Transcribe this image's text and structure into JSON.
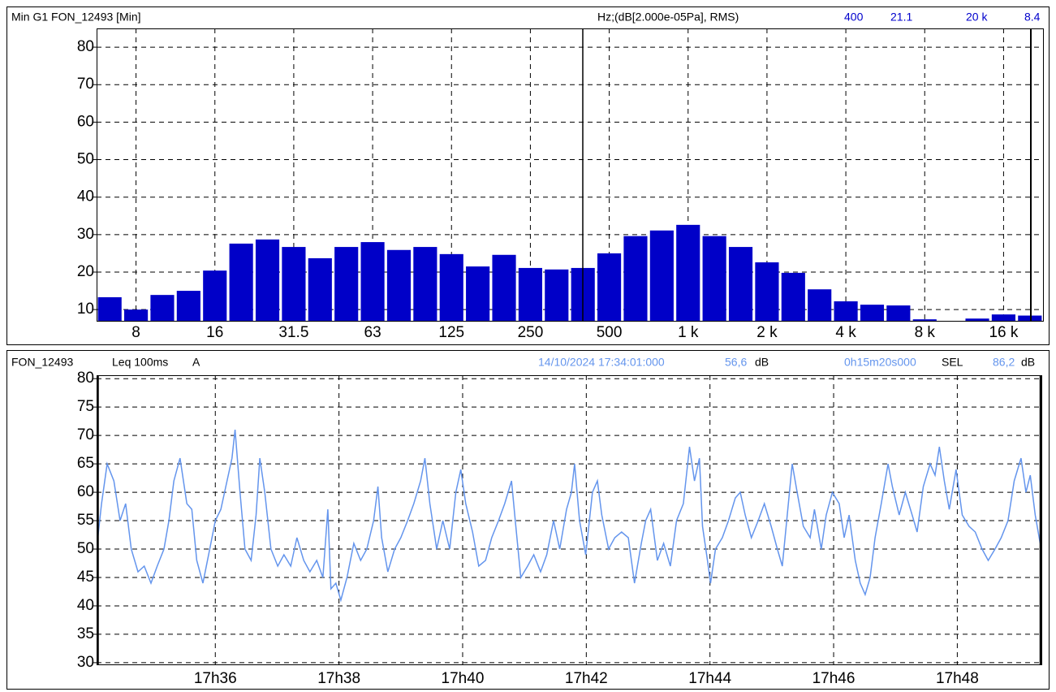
{
  "chart_data": [
    {
      "type": "bar",
      "title": "Min G1 FON_12493 [Min]",
      "unit_label": "Hz;(dB[2.000e-05Pa], RMS)",
      "cursor_labels": [
        "400",
        "21.1",
        "20 k",
        "8.4"
      ],
      "categories": [
        null,
        "8",
        null,
        null,
        "16",
        null,
        null,
        "31.5",
        null,
        null,
        "63",
        null,
        null,
        "125",
        null,
        null,
        "250",
        null,
        null,
        "500",
        null,
        null,
        "1 k",
        null,
        null,
        "2 k",
        null,
        null,
        "4 k",
        null,
        null,
        "8 k",
        null,
        null,
        "16 k",
        null
      ],
      "values": [
        13.3,
        10,
        13.9,
        15,
        20.4,
        27.6,
        28.7,
        26.7,
        23.7,
        26.7,
        28,
        25.9,
        26.7,
        24.8,
        21.5,
        24.6,
        21.1,
        20.7,
        21.1,
        25,
        29.6,
        31.1,
        32.6,
        29.6,
        26.7,
        22.6,
        19.8,
        15.4,
        12.2,
        11.3,
        11.1,
        7.4,
        7,
        7.6,
        8.7,
        8.4
      ],
      "color": "#0000c8",
      "ylim": [
        7,
        85
      ],
      "yticks": [
        10,
        20,
        30,
        40,
        50,
        60,
        70,
        80
      ],
      "grid": true
    },
    {
      "type": "line",
      "title": "FON_12493",
      "weighting": "A",
      "start_time": "14/10/2024 17:34:01:000",
      "level": "56,6",
      "unit": "dB",
      "duration": "0h15m20s000",
      "sel_label": "SEL",
      "sel_value": "86,2",
      "x": [
        34.08,
        34.16,
        34.25,
        34.36,
        34.46,
        34.55,
        34.64,
        34.75,
        34.85,
        34.96,
        35.06,
        35.17,
        35.25,
        35.33,
        35.43,
        35.54,
        35.62,
        35.7,
        35.8,
        35.91,
        36.0,
        36.09,
        36.19,
        36.27,
        36.32,
        36.4,
        36.48,
        36.58,
        36.66,
        36.72,
        36.8,
        36.9,
        37.01,
        37.11,
        37.22,
        37.32,
        37.43,
        37.53,
        37.64,
        37.74,
        37.82,
        37.87,
        37.95,
        38.03,
        38.13,
        38.24,
        38.35,
        38.45,
        38.56,
        38.63,
        38.69,
        38.79,
        38.9,
        39.0,
        39.11,
        39.21,
        39.32,
        39.39,
        39.47,
        39.58,
        39.68,
        39.79,
        39.89,
        39.97,
        40.05,
        40.16,
        40.26,
        40.37,
        40.47,
        40.58,
        40.68,
        40.79,
        40.86,
        40.94,
        41.05,
        41.15,
        41.26,
        41.36,
        41.47,
        41.57,
        41.68,
        41.76,
        41.81,
        41.89,
        41.99,
        42.1,
        42.18,
        42.25,
        42.36,
        42.46,
        42.57,
        42.68,
        42.78,
        42.89,
        42.96,
        43.04,
        43.15,
        43.25,
        43.36,
        43.46,
        43.57,
        43.67,
        43.75,
        43.83,
        43.88,
        43.96,
        44.01,
        44.09,
        44.2,
        44.3,
        44.41,
        44.49,
        44.57,
        44.67,
        44.78,
        44.88,
        44.99,
        45.09,
        45.17,
        45.25,
        45.33,
        45.41,
        45.51,
        45.62,
        45.69,
        45.8,
        45.88,
        45.98,
        46.09,
        46.17,
        46.25,
        46.35,
        46.43,
        46.51,
        46.59,
        46.67,
        46.77,
        46.88,
        46.95,
        47.06,
        47.16,
        47.27,
        47.35,
        47.45,
        47.56,
        47.64,
        47.71,
        47.79,
        47.87,
        47.98,
        48.08,
        48.19,
        48.29,
        48.4,
        48.5,
        48.61,
        48.71,
        48.82,
        48.92,
        49.03,
        49.11,
        49.18,
        49.26,
        49.34
      ],
      "series": [
        {
          "name": "Leq 100ms",
          "color": "#6495ed",
          "values": [
            50,
            58,
            65,
            62,
            55,
            58,
            50,
            46,
            47,
            44,
            47,
            50,
            55,
            62,
            66,
            58,
            57,
            48,
            44,
            50,
            55,
            57,
            62,
            66,
            71,
            60,
            50,
            48,
            56,
            66,
            60,
            50,
            47,
            49,
            47,
            52,
            48,
            46,
            48,
            45,
            57,
            43,
            44,
            41,
            45,
            51,
            48,
            50,
            55,
            61,
            52,
            46,
            50,
            52,
            55,
            58,
            62,
            66,
            58,
            50,
            55,
            50,
            60,
            64,
            58,
            53,
            47,
            48,
            52,
            55,
            58,
            62,
            54,
            45,
            47,
            49,
            46,
            49,
            55,
            50,
            57,
            60,
            65,
            55,
            49,
            60,
            62,
            56,
            50,
            52,
            53,
            52,
            44,
            51,
            55,
            57,
            48,
            51,
            47,
            55,
            58,
            68,
            62,
            66,
            54,
            48,
            44,
            50,
            52,
            55,
            59,
            60,
            56,
            52,
            55,
            58,
            54,
            50,
            47,
            56,
            65,
            60,
            54,
            52,
            57,
            50,
            56,
            60,
            58,
            52,
            56,
            48,
            44,
            42,
            45,
            52,
            58,
            65,
            61,
            56,
            60,
            56,
            53,
            61,
            65,
            63,
            68,
            62,
            57,
            64,
            56,
            54,
            53,
            50,
            48,
            50,
            52,
            55,
            62,
            66,
            60,
            63,
            56,
            51
          ]
        }
      ],
      "xlim": [
        34.08,
        49.36
      ],
      "xticks": [
        {
          "value": 36,
          "label": "17h36"
        },
        {
          "value": 38,
          "label": "17h38"
        },
        {
          "value": 40,
          "label": "17h40"
        },
        {
          "value": 42,
          "label": "17h42"
        },
        {
          "value": 44,
          "label": "17h44"
        },
        {
          "value": 46,
          "label": "17h46"
        },
        {
          "value": 48,
          "label": "17h48"
        }
      ],
      "ylim": [
        29.7,
        80.6
      ],
      "yticks": [
        30,
        35,
        40,
        45,
        50,
        55,
        60,
        65,
        70,
        75,
        80
      ],
      "grid": true
    }
  ]
}
